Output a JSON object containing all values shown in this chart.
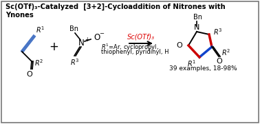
{
  "title_line1": "Sc(OTf)₃-Catalyzed  [3+2]-Cycloaddition of Nitrones with",
  "title_line2": "Ynones",
  "bg_color": "#ffffff",
  "border_color": "#777777",
  "text_color": "#000000",
  "red_color": "#dd0000",
  "catalyst_text": "Sc(OTf)₃",
  "yield_text": "39 examples, 18-98%",
  "r_group_text1": "R¹=Ar, cyclopropyl,",
  "r_group_text2": "thiophenyl, pyridinyl, H",
  "alkyne_blue": "#4472C4",
  "bond_red": "#cc0000",
  "bond_blue": "#1144cc"
}
